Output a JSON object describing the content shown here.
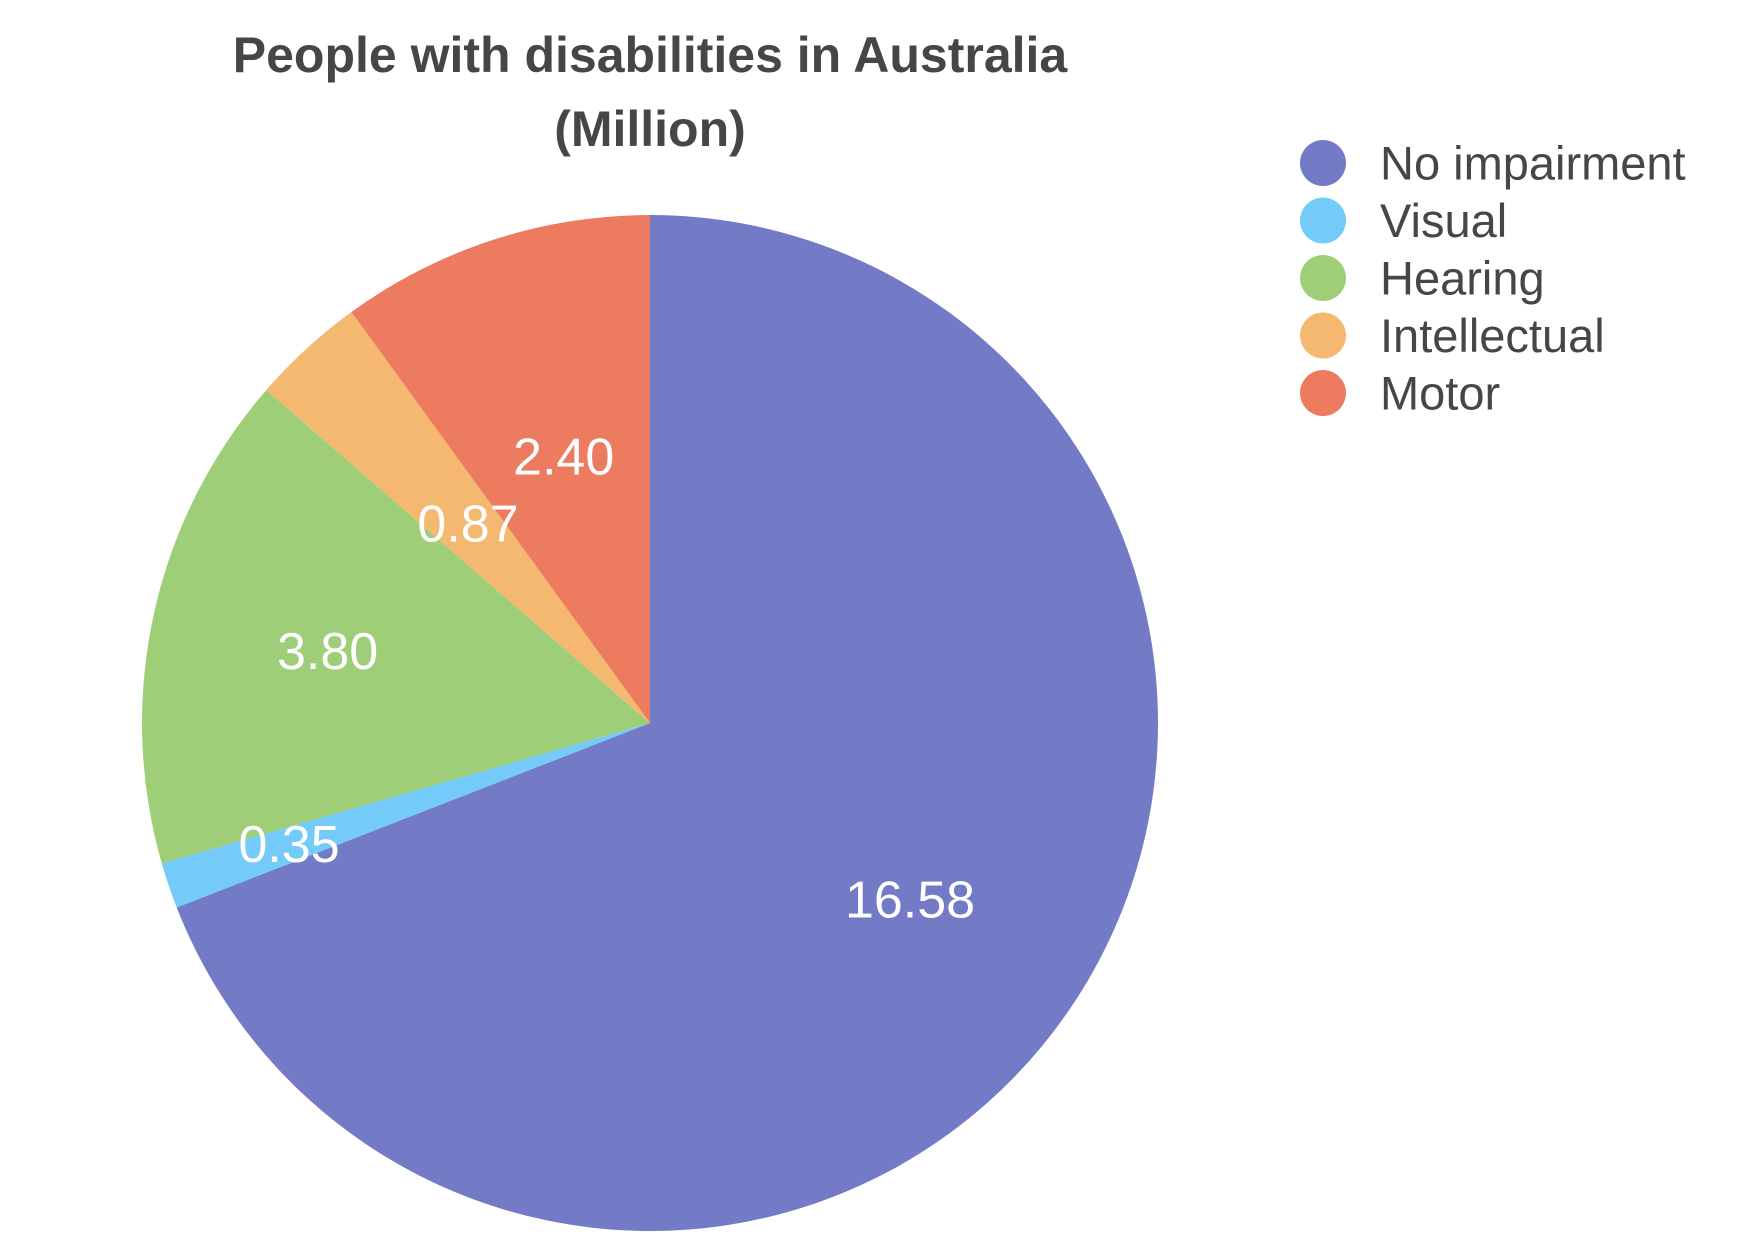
{
  "chart_data": {
    "type": "pie",
    "title": "People with disabilities in Australia",
    "subtitle": "(Million)",
    "categories": [
      "No impairment",
      "Visual",
      "Hearing",
      "Intellectual",
      "Motor"
    ],
    "values": [
      16.58,
      0.35,
      3.8,
      0.87,
      2.4
    ],
    "data_labels": [
      "16.58",
      "0.35",
      "3.80",
      "0.87",
      "2.40"
    ],
    "colors": [
      "#747bc6",
      "#74cbf9",
      "#9ece78",
      "#f4b870",
      "#ec7b5f"
    ],
    "start_angle_deg": 0,
    "direction": "clockwise",
    "legend": {
      "placement": "top-right",
      "marker": "circle",
      "entries": [
        "No impairment",
        "Visual",
        "Hearing",
        "Intellectual",
        "Motor"
      ]
    }
  }
}
